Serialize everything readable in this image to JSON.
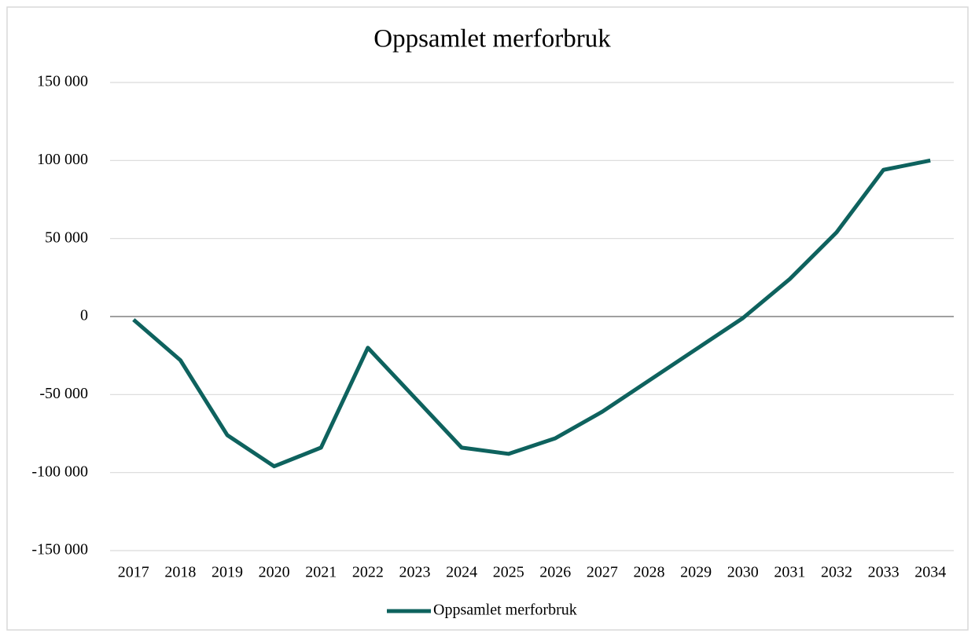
{
  "chart_data": {
    "type": "line",
    "title": "Oppsamlet merforbruk",
    "categories": [
      "2017",
      "2018",
      "2019",
      "2020",
      "2021",
      "2022",
      "2023",
      "2024",
      "2025",
      "2026",
      "2027",
      "2028",
      "2029",
      "2030",
      "2031",
      "2032",
      "2033",
      "2034"
    ],
    "series": [
      {
        "name": "Oppsamlet merforbruk",
        "color": "#0e625e",
        "values": [
          -2000,
          -28000,
          -76000,
          -96000,
          -84000,
          -20000,
          -52000,
          -84000,
          -88000,
          -78000,
          -61000,
          -41000,
          -21000,
          -1000,
          24000,
          54000,
          94000,
          100000
        ]
      }
    ],
    "ylim": [
      -150000,
      150000
    ],
    "yticks": [
      {
        "value": -150000,
        "label": "-150 000"
      },
      {
        "value": -100000,
        "label": "-100 000"
      },
      {
        "value": -50000,
        "label": "-50 000"
      },
      0,
      {
        "value": 50000,
        "label": "50 000"
      },
      {
        "value": 100000,
        "label": "100 000"
      },
      {
        "value": 150000,
        "label": "150 000"
      }
    ],
    "grid": true,
    "negative_tick_color": "#e00000",
    "legend": "bottom"
  }
}
